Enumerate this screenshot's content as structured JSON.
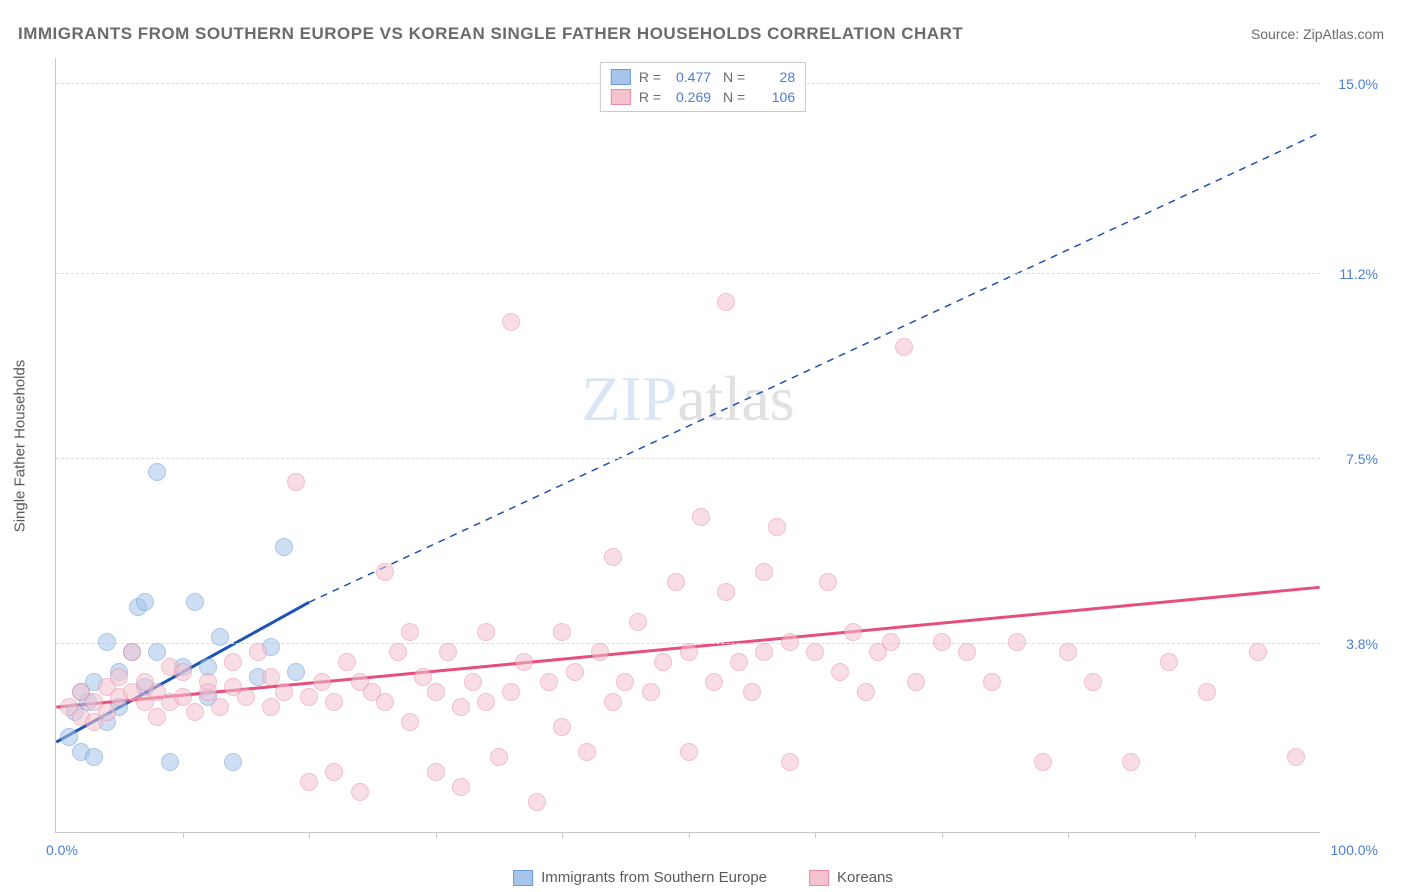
{
  "title": "IMMIGRANTS FROM SOUTHERN EUROPE VS KOREAN SINGLE FATHER HOUSEHOLDS CORRELATION CHART",
  "source": "Source: ZipAtlas.com",
  "y_axis_label": "Single Father Households",
  "watermark_a": "ZIP",
  "watermark_b": "atlas",
  "chart": {
    "type": "scatter",
    "xlim": [
      0,
      100
    ],
    "ylim": [
      0,
      15.5
    ],
    "x_tick_left": "0.0%",
    "x_tick_right": "100.0%",
    "y_ticks": [
      {
        "value": 3.8,
        "label": "3.8%"
      },
      {
        "value": 7.5,
        "label": "7.5%"
      },
      {
        "value": 11.2,
        "label": "11.2%"
      },
      {
        "value": 15.0,
        "label": "15.0%"
      }
    ],
    "x_minor_ticks": [
      10,
      20,
      30,
      40,
      50,
      60,
      70,
      80,
      90
    ],
    "background_color": "#ffffff",
    "grid_color": "#dcdcdc",
    "axis_color": "#c7c7c7",
    "point_radius": 9,
    "point_opacity": 0.55,
    "series": [
      {
        "name": "Immigrants from Southern Europe",
        "color_fill": "#a7c4ea",
        "color_stroke": "#6a9bd8",
        "r": "0.477",
        "n": "28",
        "trend": {
          "color": "#1f54b5",
          "solid": {
            "x1": 0,
            "y1": 1.8,
            "x2": 20,
            "y2": 4.6
          },
          "dashed": {
            "x1": 20,
            "y1": 4.6,
            "x2": 100,
            "y2": 14.0
          }
        },
        "points": [
          [
            1,
            1.9
          ],
          [
            1.5,
            2.4
          ],
          [
            2,
            2.8
          ],
          [
            2,
            1.6
          ],
          [
            2.5,
            2.6
          ],
          [
            3,
            3.0
          ],
          [
            3,
            1.5
          ],
          [
            4,
            2.2
          ],
          [
            4,
            3.8
          ],
          [
            5,
            3.2
          ],
          [
            5,
            2.5
          ],
          [
            6,
            3.6
          ],
          [
            6.5,
            4.5
          ],
          [
            7,
            4.6
          ],
          [
            7,
            2.9
          ],
          [
            8,
            3.6
          ],
          [
            8,
            7.2
          ],
          [
            9,
            1.4
          ],
          [
            10,
            3.3
          ],
          [
            11,
            4.6
          ],
          [
            12,
            3.3
          ],
          [
            12,
            2.7
          ],
          [
            13,
            3.9
          ],
          [
            14,
            1.4
          ],
          [
            16,
            3.1
          ],
          [
            17,
            3.7
          ],
          [
            18,
            5.7
          ],
          [
            19,
            3.2
          ]
        ]
      },
      {
        "name": "Koreans",
        "color_fill": "#f4c3cf",
        "color_stroke": "#e98ca5",
        "r": "0.269",
        "n": "106",
        "trend": {
          "color": "#e54f7b",
          "solid": {
            "x1": 0,
            "y1": 2.5,
            "x2": 100,
            "y2": 4.9
          }
        },
        "points": [
          [
            1,
            2.5
          ],
          [
            2,
            2.3
          ],
          [
            2,
            2.8
          ],
          [
            3,
            2.6
          ],
          [
            3,
            2.2
          ],
          [
            4,
            2.9
          ],
          [
            4,
            2.4
          ],
          [
            5,
            2.7
          ],
          [
            5,
            3.1
          ],
          [
            6,
            2.8
          ],
          [
            6,
            3.6
          ],
          [
            7,
            2.6
          ],
          [
            7,
            3.0
          ],
          [
            8,
            2.8
          ],
          [
            8,
            2.3
          ],
          [
            9,
            3.3
          ],
          [
            9,
            2.6
          ],
          [
            10,
            3.2
          ],
          [
            10,
            2.7
          ],
          [
            11,
            2.4
          ],
          [
            12,
            3.0
          ],
          [
            12,
            2.8
          ],
          [
            13,
            2.5
          ],
          [
            14,
            3.4
          ],
          [
            14,
            2.9
          ],
          [
            15,
            2.7
          ],
          [
            16,
            3.6
          ],
          [
            17,
            2.5
          ],
          [
            17,
            3.1
          ],
          [
            18,
            2.8
          ],
          [
            19,
            7.0
          ],
          [
            20,
            2.7
          ],
          [
            20,
            1.0
          ],
          [
            21,
            3.0
          ],
          [
            22,
            2.6
          ],
          [
            22,
            1.2
          ],
          [
            23,
            3.4
          ],
          [
            24,
            0.8
          ],
          [
            24,
            3.0
          ],
          [
            25,
            2.8
          ],
          [
            26,
            5.2
          ],
          [
            26,
            2.6
          ],
          [
            27,
            3.6
          ],
          [
            28,
            2.2
          ],
          [
            28,
            4.0
          ],
          [
            29,
            3.1
          ],
          [
            30,
            2.8
          ],
          [
            30,
            1.2
          ],
          [
            31,
            3.6
          ],
          [
            32,
            2.5
          ],
          [
            32,
            0.9
          ],
          [
            33,
            3.0
          ],
          [
            34,
            2.6
          ],
          [
            34,
            4.0
          ],
          [
            35,
            1.5
          ],
          [
            36,
            10.2
          ],
          [
            36,
            2.8
          ],
          [
            37,
            3.4
          ],
          [
            38,
            0.6
          ],
          [
            39,
            3.0
          ],
          [
            40,
            4.0
          ],
          [
            40,
            2.1
          ],
          [
            41,
            3.2
          ],
          [
            42,
            1.6
          ],
          [
            43,
            3.6
          ],
          [
            44,
            5.5
          ],
          [
            44,
            2.6
          ],
          [
            45,
            3.0
          ],
          [
            46,
            4.2
          ],
          [
            47,
            2.8
          ],
          [
            48,
            3.4
          ],
          [
            49,
            5.0
          ],
          [
            50,
            3.6
          ],
          [
            50,
            1.6
          ],
          [
            51,
            6.3
          ],
          [
            52,
            3.0
          ],
          [
            53,
            10.6
          ],
          [
            53,
            4.8
          ],
          [
            54,
            3.4
          ],
          [
            55,
            2.8
          ],
          [
            56,
            5.2
          ],
          [
            56,
            3.6
          ],
          [
            57,
            6.1
          ],
          [
            58,
            3.8
          ],
          [
            58,
            1.4
          ],
          [
            60,
            3.6
          ],
          [
            61,
            5.0
          ],
          [
            62,
            3.2
          ],
          [
            63,
            4.0
          ],
          [
            64,
            2.8
          ],
          [
            65,
            3.6
          ],
          [
            66,
            3.8
          ],
          [
            67,
            9.7
          ],
          [
            68,
            3.0
          ],
          [
            70,
            3.8
          ],
          [
            72,
            3.6
          ],
          [
            74,
            3.0
          ],
          [
            76,
            3.8
          ],
          [
            78,
            1.4
          ],
          [
            80,
            3.6
          ],
          [
            82,
            3.0
          ],
          [
            85,
            1.4
          ],
          [
            88,
            3.4
          ],
          [
            91,
            2.8
          ],
          [
            95,
            3.6
          ],
          [
            98,
            1.5
          ]
        ]
      }
    ]
  },
  "legend_series1": "Immigrants from Southern Europe",
  "legend_series2": "Koreans"
}
